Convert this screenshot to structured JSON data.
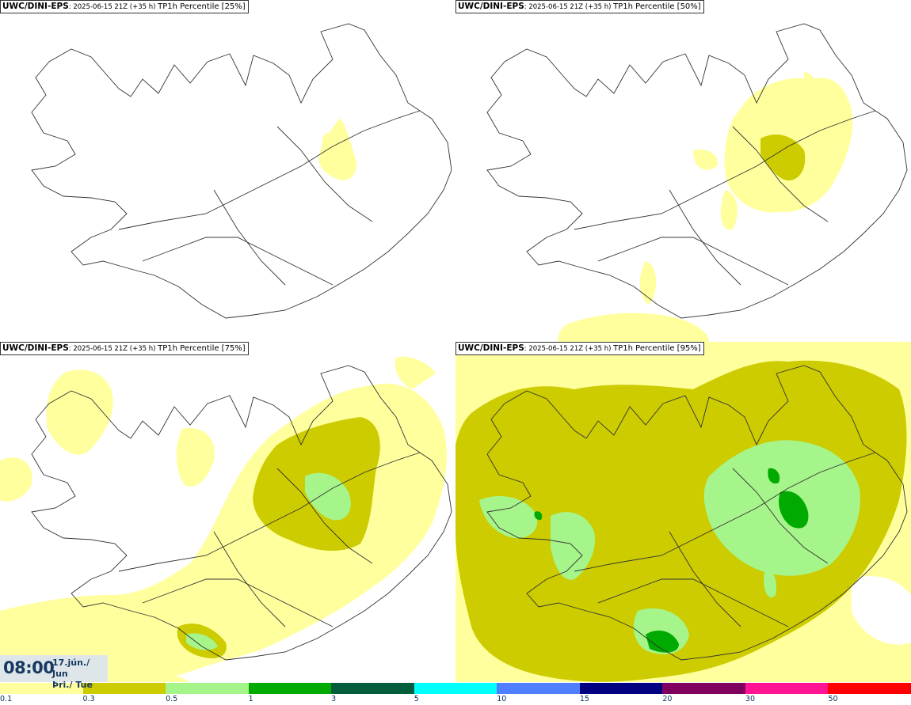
{
  "panels": [
    {
      "model": "UWC/DINI-EPS",
      "run": ": 2025-06-15 21Z (+35 h) ",
      "title": "TP1h Percentile [25%]"
    },
    {
      "model": "UWC/DINI-EPS",
      "run": ": 2025-06-15 21Z (+35 h) ",
      "title": "TP1h Percentile [50%]"
    },
    {
      "model": "UWC/DINI-EPS",
      "run": ": 2025-06-15 21Z (+35 h) ",
      "title": "TP1h Percentile [75%]"
    },
    {
      "model": "UWC/DINI-EPS",
      "run": ": 2025-06-15 21Z (+35 h) ",
      "title": "TP1h Percentile [95%]"
    }
  ],
  "valid_time": {
    "time": "08:00",
    "date": "17.jún./ Jun",
    "weekday": "Þri./ Tue"
  },
  "legend": {
    "ticks": [
      "0.1",
      "0.3",
      "0.5",
      "1",
      "3",
      "5",
      "10",
      "15",
      "20",
      "30",
      "50"
    ],
    "colors": [
      "#ffff9e",
      "#cccc00",
      "#a6f58a",
      "#00aa00",
      "#005e3c",
      "#00ffff",
      "#4f7fff",
      "#000080",
      "#800060",
      "#ff1493",
      "#ff0000"
    ]
  },
  "colors": {
    "outline": "#333333",
    "text_dark": "#0b2f5c"
  }
}
